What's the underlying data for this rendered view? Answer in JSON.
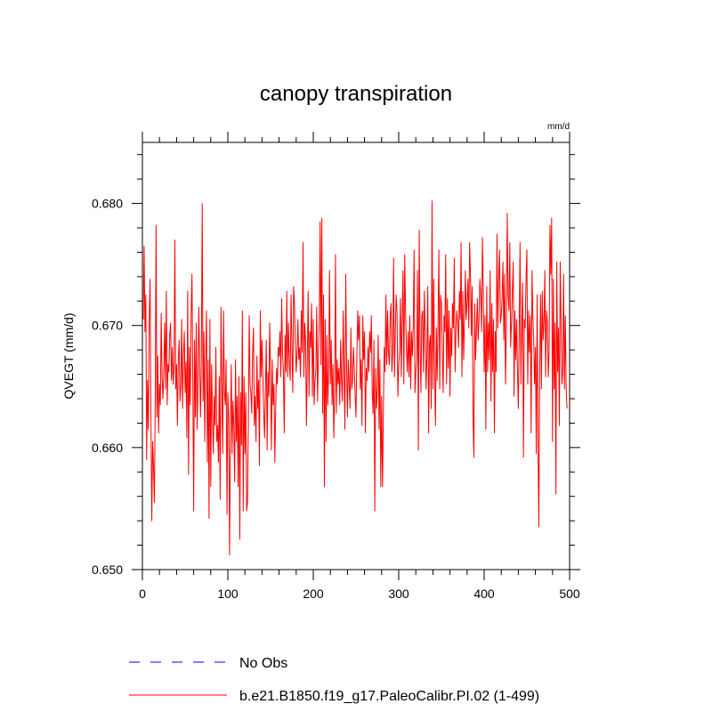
{
  "chart_data": {
    "type": "line",
    "title": "canopy transpiration",
    "units": "mm/d",
    "xlabel": "",
    "ylabel": "QVEGT  (mm/d)",
    "xlim": [
      0,
      500
    ],
    "ylim": [
      0.65,
      0.685
    ],
    "x_ticks": [
      0,
      100,
      200,
      300,
      400,
      500
    ],
    "x_tick_labels": [
      "0",
      "100",
      "200",
      "300",
      "400",
      "500"
    ],
    "y_ticks": [
      0.65,
      0.66,
      0.67,
      0.68
    ],
    "y_tick_labels": [
      "0.650",
      "0.660",
      "0.670",
      "0.680"
    ],
    "grid": false,
    "legend_position": "bottom",
    "series": [
      {
        "name": "No Obs",
        "color": "#0000ff",
        "style": "dashed",
        "values": []
      },
      {
        "name": "b.e21.B1850.f19_g17.PaleoCalibr.PI.02 (1-499)",
        "color": "#ff0000",
        "style": "solid",
        "x_start": 1,
        "x_step": 1,
        "values": [
          0.6705,
          0.6765,
          0.6695,
          0.6725,
          0.659,
          0.6655,
          0.6615,
          0.6705,
          0.6738,
          0.6625,
          0.654,
          0.6605,
          0.6585,
          0.6555,
          0.6635,
          0.6782,
          0.6625,
          0.6675,
          0.6612,
          0.6652,
          0.6635,
          0.671,
          0.6658,
          0.664,
          0.6662,
          0.6702,
          0.6648,
          0.6728,
          0.6635,
          0.6668,
          0.6662,
          0.6692,
          0.6702,
          0.6655,
          0.6682,
          0.6652,
          0.6665,
          0.677,
          0.6648,
          0.6668,
          0.6618,
          0.6672,
          0.6688,
          0.6638,
          0.6652,
          0.6705,
          0.6632,
          0.6675,
          0.6695,
          0.6645,
          0.667,
          0.6608,
          0.6728,
          0.6578,
          0.6682,
          0.6635,
          0.6708,
          0.6742,
          0.6658,
          0.6548,
          0.6688,
          0.6625,
          0.6702,
          0.6615,
          0.6652,
          0.6715,
          0.6668,
          0.6625,
          0.6672,
          0.68,
          0.6638,
          0.6695,
          0.6605,
          0.6672,
          0.6712,
          0.6588,
          0.6672,
          0.6542,
          0.6705,
          0.6568,
          0.6668,
          0.6628,
          0.6595,
          0.6642,
          0.6618,
          0.6682,
          0.6605,
          0.6618,
          0.6588,
          0.6658,
          0.6558,
          0.6715,
          0.6648,
          0.6595,
          0.6712,
          0.6645,
          0.6635,
          0.6672,
          0.6545,
          0.6645,
          0.6625,
          0.6512,
          0.6608,
          0.6668,
          0.6595,
          0.6638,
          0.6618,
          0.6572,
          0.6672,
          0.6605,
          0.6642,
          0.6568,
          0.6658,
          0.6525,
          0.6645,
          0.6602,
          0.6712,
          0.6548,
          0.6658,
          0.6595,
          0.6645,
          0.6548,
          0.6555,
          0.6618,
          0.6708,
          0.6652,
          0.6645,
          0.6628,
          0.6678,
          0.6698,
          0.6618,
          0.6642,
          0.6605,
          0.6675,
          0.6632,
          0.6655,
          0.6585,
          0.6712,
          0.6658,
          0.6688,
          0.6658,
          0.6628,
          0.6608,
          0.6648,
          0.6688,
          0.6598,
          0.6662,
          0.6642,
          0.6702,
          0.6662,
          0.6598,
          0.6672,
          0.6635,
          0.6652,
          0.6588,
          0.6632,
          0.6665,
          0.6652,
          0.6682,
          0.6675,
          0.6695,
          0.6658,
          0.6722,
          0.6678,
          0.6662,
          0.6612,
          0.6692,
          0.6662,
          0.6728,
          0.6658,
          0.6702,
          0.6668,
          0.6655,
          0.6725,
          0.6685,
          0.6645,
          0.6732,
          0.6718,
          0.6685,
          0.6662,
          0.6678,
          0.6705,
          0.6672,
          0.6682,
          0.6658,
          0.6712,
          0.6678,
          0.6768,
          0.6658,
          0.6702,
          0.6688,
          0.6618,
          0.6672,
          0.6728,
          0.6642,
          0.6695,
          0.6682,
          0.6718,
          0.6642,
          0.6705,
          0.6635,
          0.6655,
          0.6662,
          0.6715,
          0.6638,
          0.6675,
          0.6705,
          0.6785,
          0.6668,
          0.6788,
          0.6628,
          0.6725,
          0.6568,
          0.6705,
          0.6605,
          0.6692,
          0.6635,
          0.6662,
          0.6745,
          0.6652,
          0.6688,
          0.6635,
          0.6668,
          0.6608,
          0.6645,
          0.6758,
          0.6628,
          0.6672,
          0.6652,
          0.6665,
          0.6635,
          0.6688,
          0.6655,
          0.6638,
          0.6712,
          0.6665,
          0.6615,
          0.6742,
          0.6668,
          0.6625,
          0.6672,
          0.6652,
          0.6632,
          0.6698,
          0.6648,
          0.6655,
          0.6682,
          0.6665,
          0.6642,
          0.6625,
          0.6675,
          0.6712,
          0.6688,
          0.6708,
          0.6648,
          0.6672,
          0.6618,
          0.6708,
          0.6672,
          0.6695,
          0.6612,
          0.6665,
          0.6655,
          0.6682,
          0.6662,
          0.6695,
          0.6678,
          0.6708,
          0.6645,
          0.6628,
          0.6688,
          0.6548,
          0.6665,
          0.6632,
          0.6648,
          0.6692,
          0.6615,
          0.6672,
          0.6568,
          0.6642,
          0.6568,
          0.6628,
          0.6682,
          0.6662,
          0.6725,
          0.6668,
          0.6712,
          0.6678,
          0.6668,
          0.6708,
          0.6718,
          0.6662,
          0.6678,
          0.6755,
          0.6658,
          0.6695,
          0.6725,
          0.6712,
          0.6642,
          0.6668,
          0.6678,
          0.6722,
          0.6658,
          0.6705,
          0.6745,
          0.6652,
          0.6758,
          0.6712,
          0.6682,
          0.6662,
          0.6695,
          0.6658,
          0.6708,
          0.6648,
          0.6695,
          0.6675,
          0.6698,
          0.6762,
          0.6645,
          0.6662,
          0.6672,
          0.6745,
          0.6598,
          0.6778,
          0.6688,
          0.6645,
          0.6708,
          0.6712,
          0.6662,
          0.6728,
          0.6695,
          0.6648,
          0.6675,
          0.6732,
          0.6612,
          0.6685,
          0.6692,
          0.6632,
          0.6802,
          0.6648,
          0.6738,
          0.6662,
          0.6618,
          0.6698,
          0.6655,
          0.6702,
          0.6762,
          0.6648,
          0.6725,
          0.6718,
          0.6678,
          0.6645,
          0.6708,
          0.6695,
          0.6758,
          0.6652,
          0.6722,
          0.6665,
          0.6712,
          0.6642,
          0.6698,
          0.6675,
          0.6718,
          0.6698,
          0.6755,
          0.6662,
          0.6695,
          0.6712,
          0.6702,
          0.6682,
          0.6728,
          0.6705,
          0.6768,
          0.6658,
          0.6728,
          0.6672,
          0.6705,
          0.6745,
          0.6705,
          0.6718,
          0.6738,
          0.6698,
          0.6768,
          0.6742,
          0.6692,
          0.6732,
          0.6625,
          0.6592,
          0.6718,
          0.6672,
          0.6698,
          0.6722,
          0.6688,
          0.6705,
          0.6738,
          0.6725,
          0.6695,
          0.6772,
          0.6728,
          0.6662,
          0.6708,
          0.6615,
          0.6732,
          0.6662,
          0.6702,
          0.6672,
          0.6745,
          0.6638,
          0.6718,
          0.6662,
          0.6705,
          0.6612,
          0.6695,
          0.6662,
          0.6775,
          0.6698,
          0.6738,
          0.6762,
          0.6702,
          0.6708,
          0.6722,
          0.6752,
          0.6688,
          0.6742,
          0.6652,
          0.6698,
          0.6792,
          0.6725,
          0.6712,
          0.6768,
          0.6682,
          0.6702,
          0.6728,
          0.6752,
          0.6642,
          0.6712,
          0.6672,
          0.6705,
          0.6662,
          0.6632,
          0.6695,
          0.6768,
          0.6652,
          0.6702,
          0.6735,
          0.6592,
          0.6705,
          0.6698,
          0.6738,
          0.6762,
          0.6652,
          0.6712,
          0.6678,
          0.6708,
          0.6612,
          0.6745,
          0.6708,
          0.6688,
          0.6652,
          0.6682,
          0.6595,
          0.6725,
          0.6605,
          0.6535,
          0.6662,
          0.6725,
          0.6648,
          0.6728,
          0.6688,
          0.6702,
          0.6745,
          0.6658,
          0.6712,
          0.6702,
          0.6658,
          0.6678,
          0.6782,
          0.6742,
          0.6788,
          0.6605,
          0.6738,
          0.6648,
          0.6702,
          0.6562,
          0.6752,
          0.6662,
          0.6698,
          0.6618,
          0.6752,
          0.6702,
          0.6652,
          0.6662,
          0.6742,
          0.6648,
          0.6708,
          0.6648,
          0.6632
        ]
      }
    ]
  }
}
